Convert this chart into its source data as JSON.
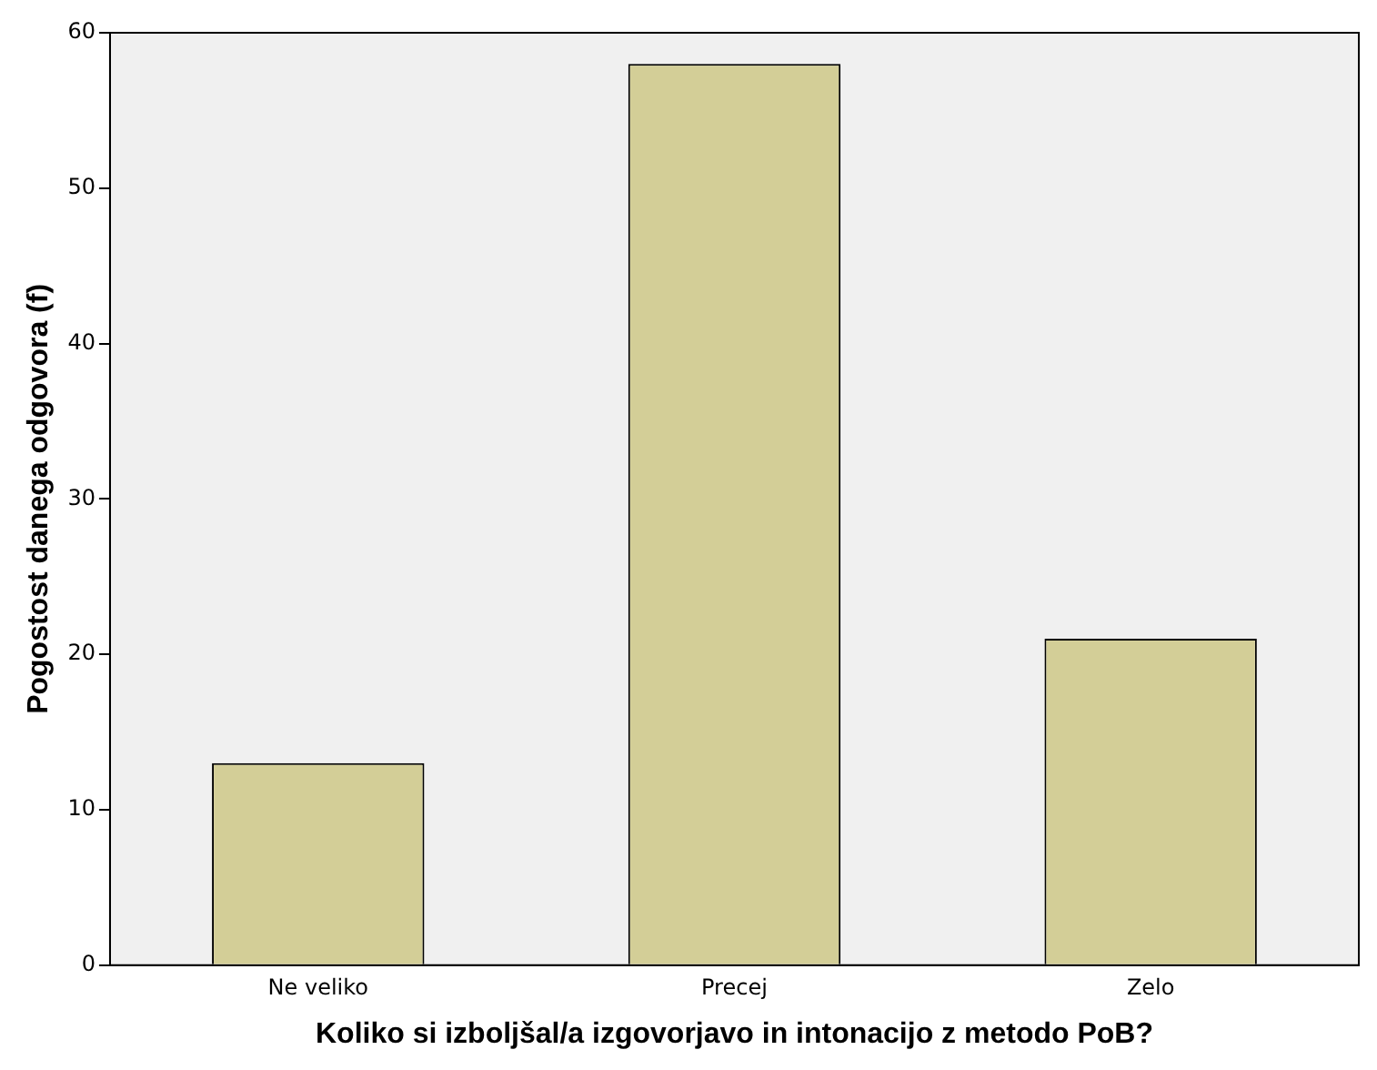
{
  "chart_data": {
    "type": "bar",
    "xlabel": "Koliko si izboljšal/a izgovorjavo in intonacijo z metodo PoB?",
    "ylabel": "Pogostost danega odgovora (f)",
    "categories": [
      "Ne veliko",
      "Precej",
      "Zelo"
    ],
    "values": [
      13,
      58,
      21
    ],
    "color": "#d3ce97",
    "ylim": [
      0,
      60
    ],
    "yticks": [
      0,
      10,
      20,
      30,
      40,
      50,
      60
    ],
    "grid": false
  }
}
